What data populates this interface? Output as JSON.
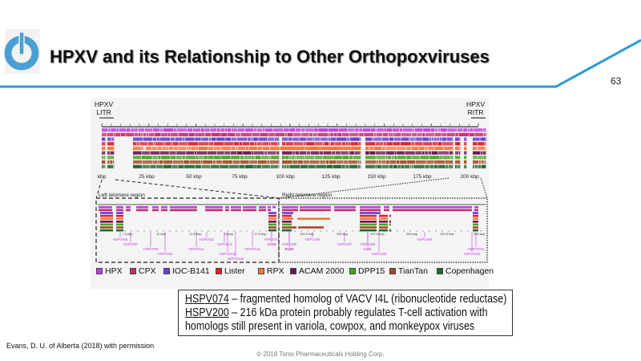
{
  "header": {
    "title": "HPXV and its Relationship to Other Orthopoxviruses",
    "page_number": "63",
    "accent_color": "#2e9bd6",
    "logo_icon": "power-button-icon"
  },
  "figure": {
    "left_label": [
      "HPXV",
      "LITR"
    ],
    "right_label": [
      "HPXV",
      "RITR"
    ],
    "axis_ticks": [
      "kbp",
      "25 kbp",
      "50 kbp",
      "75 kbp",
      "100 kbp",
      "125 kbp",
      "150 kbp",
      "175 kbp",
      "200 kbp"
    ],
    "left_region": {
      "title": "Left telomere region",
      "ticks": [
        "7.5 kbp",
        "10 kbp",
        "12.5 kbp",
        "15 kbp",
        "17.5 kbp"
      ],
      "genes": [
        "HSPV006",
        "HSPV007",
        "HSPV008",
        "HSPV009",
        "HSPV011c",
        "HSPV012",
        "HSPV013",
        "HSPV014a",
        "HSPV014b",
        "HSPV014c",
        "HSPV010",
        "C11R"
      ]
    },
    "right_region": {
      "title": "Right telomere region",
      "ticks": [
        "192.5 kbp",
        "195 kbp",
        "197.5 kbp",
        "200 kbp",
        "202.5 kbp",
        "205 kbp"
      ],
      "genes": [
        "HSPV195",
        "B16R",
        "HSPV196",
        "HSPV197",
        "HSPV198",
        "C12L",
        "HSPV199",
        "HSPV200",
        "HSPV201a",
        "HSPV201b"
      ]
    },
    "legend": [
      {
        "label": "HPX",
        "color": "#c03ee0"
      },
      {
        "label": "CPX",
        "color": "#c0306e"
      },
      {
        "label": "IOC-B141",
        "color": "#6a3cd8"
      },
      {
        "label": "Lister",
        "color": "#e02020"
      },
      {
        "label": "RPX",
        "color": "#f07838"
      },
      {
        "label": "ACAM 2000",
        "color": "#6a1458"
      },
      {
        "label": "DPP15",
        "color": "#44a820"
      },
      {
        "label": "TianTan",
        "color": "#a84828"
      },
      {
        "label": "Copenhagen",
        "color": "#1e6a28"
      }
    ]
  },
  "note": {
    "line1_gene": "HSPV074",
    "line1_text": " – fragmented homolog of VACV I4L (ribonucleotide reductase)",
    "line2_gene": "HSPV200",
    "line2_text": " – 216 kDa protein probably regulates T-cell activation with",
    "line3_text": "homologs still present in variola, cowpox, and monkeypox viruses"
  },
  "citation": "Evans, D. U. of Alberta (2018) with permission",
  "copyright": "© 2018 Tonix Pharmaceuticals Holding Corp."
}
